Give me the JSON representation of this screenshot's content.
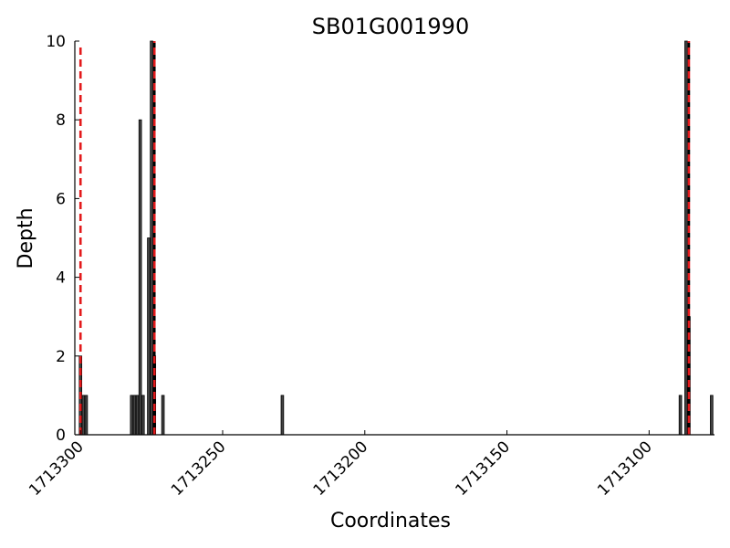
{
  "chart_data": {
    "type": "bar",
    "title": "SB01G001990",
    "xlabel": "Coordinates",
    "ylabel": "Depth",
    "xlim": [
      1713302,
      1713077
    ],
    "x_reversed": true,
    "ylim": [
      0,
      10
    ],
    "x_ticks": [
      1713300,
      1713250,
      1713200,
      1713150,
      1713100
    ],
    "x_tick_labels": [
      "1713300",
      "1713250",
      "1713200",
      "1713150",
      "1713100"
    ],
    "y_ticks": [
      0,
      2,
      4,
      6,
      8,
      10
    ],
    "y_tick_labels": [
      "0",
      "2",
      "4",
      "6",
      "8",
      "10"
    ],
    "grid": false,
    "bar_color": "#444444",
    "bar_edge_color": "#000000",
    "marker_line_color": "#e31a1c",
    "marker_line_dash_color": "#000000",
    "bins": [
      {
        "x": 1713300,
        "depth": 2
      },
      {
        "x": 1713299,
        "depth": 1
      },
      {
        "x": 1713298,
        "depth": 1
      },
      {
        "x": 1713282,
        "depth": 1
      },
      {
        "x": 1713281,
        "depth": 1
      },
      {
        "x": 1713280,
        "depth": 1
      },
      {
        "x": 1713279,
        "depth": 8
      },
      {
        "x": 1713278,
        "depth": 1
      },
      {
        "x": 1713276,
        "depth": 5
      },
      {
        "x": 1713275,
        "depth": 10
      },
      {
        "x": 1713274,
        "depth": 2
      },
      {
        "x": 1713271,
        "depth": 1
      },
      {
        "x": 1713229,
        "depth": 1
      },
      {
        "x": 1713089,
        "depth": 1
      },
      {
        "x": 1713087,
        "depth": 10
      },
      {
        "x": 1713086,
        "depth": 3
      },
      {
        "x": 1713078,
        "depth": 1
      }
    ],
    "vertical_markers": [
      {
        "x": 1713300,
        "style": "red-dashed"
      },
      {
        "x": 1713274,
        "style": "red-black-dashed"
      },
      {
        "x": 1713086,
        "style": "red-black-dashed"
      }
    ]
  }
}
